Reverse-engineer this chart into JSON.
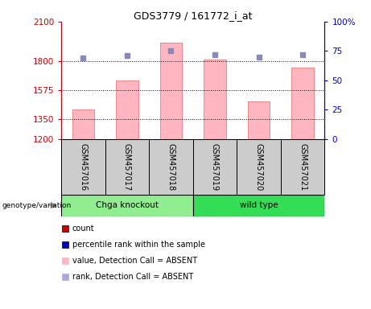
{
  "title": "GDS3779 / 161772_i_at",
  "samples": [
    "GSM457016",
    "GSM457017",
    "GSM457018",
    "GSM457019",
    "GSM457020",
    "GSM457021"
  ],
  "group_labels": [
    "Chga knockout",
    "wild type"
  ],
  "group_colors": [
    "#90EE90",
    "#33DD55"
  ],
  "bar_values": [
    1430,
    1650,
    1940,
    1810,
    1490,
    1750
  ],
  "rank_values": [
    69,
    71,
    75,
    72,
    70,
    72
  ],
  "ylim_left": [
    1200,
    2100
  ],
  "ylim_right": [
    0,
    100
  ],
  "yticks_left": [
    1200,
    1350,
    1575,
    1800,
    2100
  ],
  "yticks_right": [
    0,
    25,
    50,
    75,
    100
  ],
  "bar_color": "#FFB6C1",
  "bar_edge_color": "#EE8888",
  "rank_marker_color": "#8888BB",
  "legend_colors": [
    "#CC0000",
    "#0000CC",
    "#FFB6C1",
    "#AAAADD"
  ],
  "legend_labels": [
    "count",
    "percentile rank within the sample",
    "value, Detection Call = ABSENT",
    "rank, Detection Call = ABSENT"
  ],
  "genotype_label": "genotype/variation",
  "left_axis_color": "#CC0000",
  "right_axis_color": "#0000BB",
  "grid_yticks": [
    1350,
    1575,
    1800
  ],
  "sample_box_color": "#CCCCCC",
  "title_fontsize": 9,
  "tick_fontsize": 7.5,
  "label_fontsize": 7,
  "legend_fontsize": 7
}
